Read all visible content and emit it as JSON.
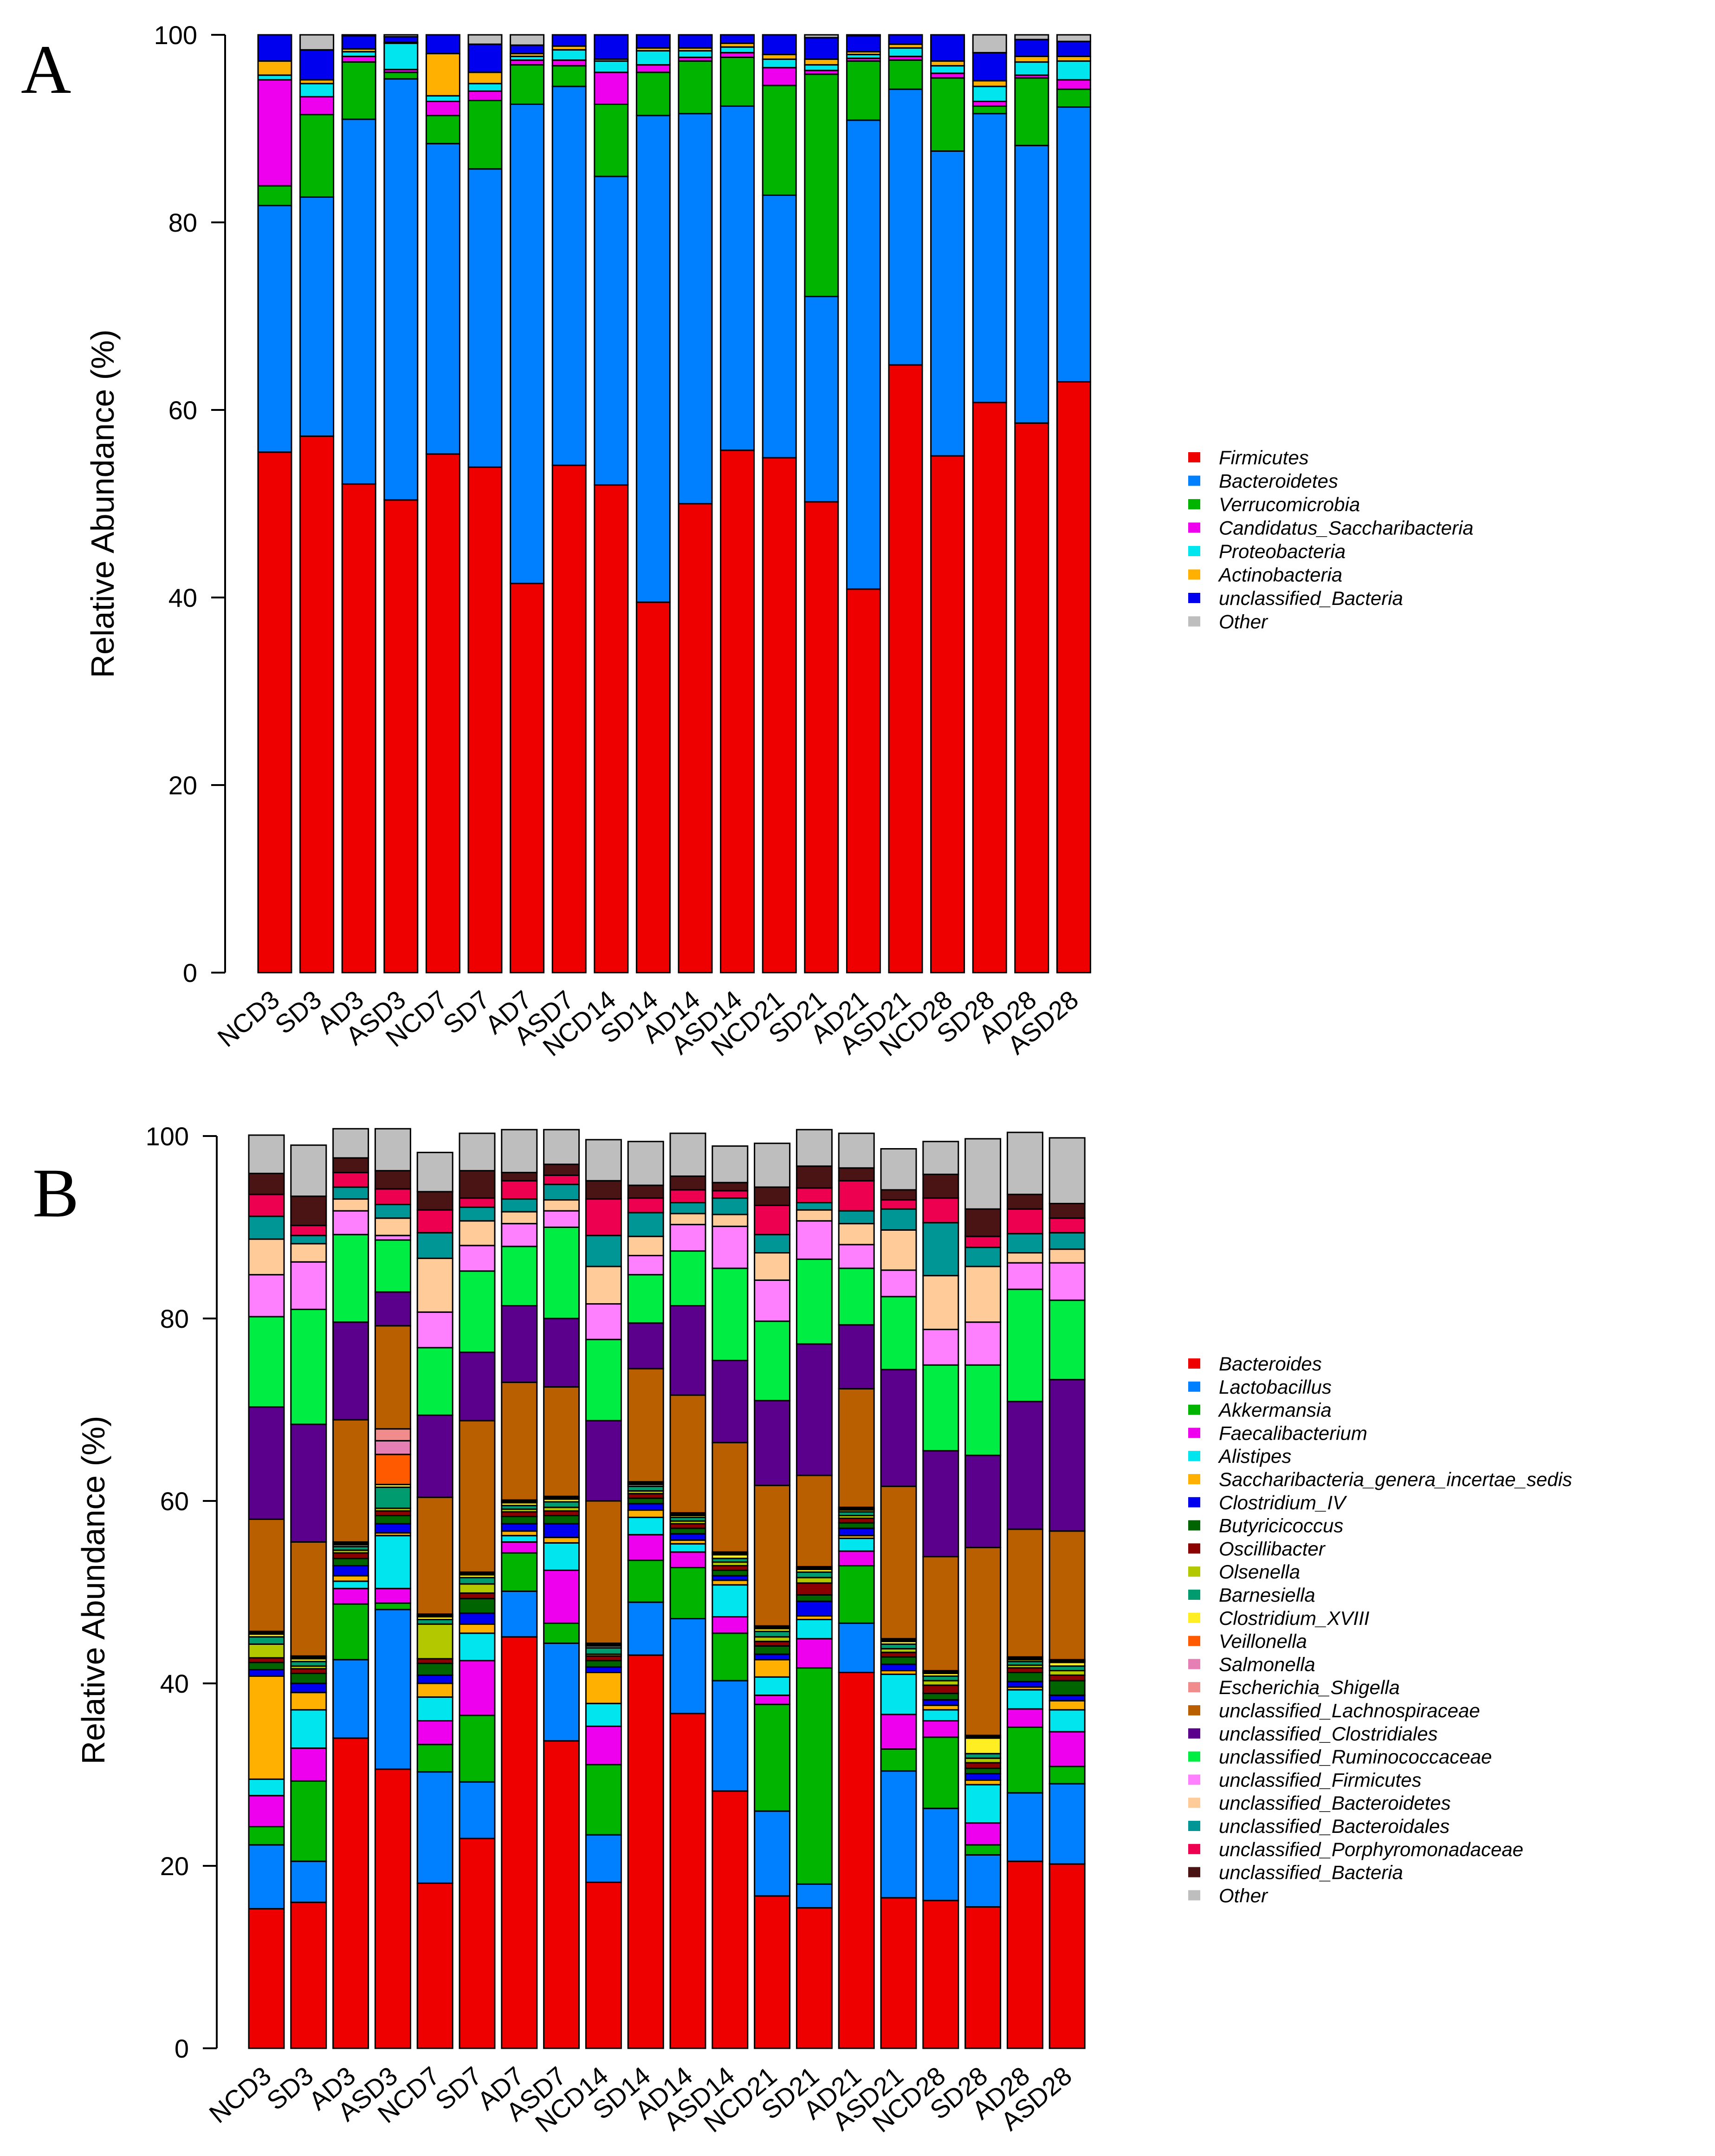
{
  "chart_data": [
    {
      "panel": "A",
      "type": "stacked_bar",
      "ylabel": "Relative Abundance (%)",
      "ylim": [
        0,
        100
      ],
      "yticks": [
        0,
        20,
        40,
        60,
        80,
        100
      ],
      "categories": [
        "NCD3",
        "SD3",
        "AD3",
        "ASD3",
        "NCD7",
        "SD7",
        "AD7",
        "ASD7",
        "NCD14",
        "SD14",
        "AD14",
        "ASD14",
        "NCD21",
        "SD21",
        "AD21",
        "ASD21",
        "NCD28",
        "SD28",
        "AD28",
        "ASD28"
      ],
      "series": [
        {
          "name": "Firmicutes",
          "color": "#ee0000",
          "values": [
            55.5,
            57.2,
            52.1,
            50.4,
            55.3,
            53.9,
            41.5,
            54.1,
            52.0,
            39.5,
            50.0,
            55.7,
            54.9,
            50.2,
            40.9,
            64.8,
            55.1,
            60.8,
            58.6,
            63.0
          ]
        },
        {
          "name": "Bacteroidetes",
          "color": "#0080ff",
          "values": [
            26.3,
            25.5,
            38.9,
            44.9,
            33.1,
            31.8,
            51.1,
            40.4,
            32.9,
            51.9,
            41.6,
            36.7,
            28.0,
            21.9,
            50.0,
            29.4,
            32.5,
            30.8,
            29.6,
            29.3
          ]
        },
        {
          "name": "Verrucomicrobia",
          "color": "#00b400",
          "values": [
            2.1,
            8.8,
            6.1,
            0.7,
            3.0,
            7.3,
            4.2,
            2.2,
            7.7,
            4.6,
            5.6,
            5.2,
            11.7,
            23.7,
            6.3,
            3.1,
            7.8,
            0.8,
            7.2,
            1.9
          ]
        },
        {
          "name": "Candidatus_Saccharibacteria",
          "color": "#ee00ee",
          "values": [
            11.3,
            1.9,
            0.6,
            0.3,
            1.5,
            1.0,
            0.5,
            0.6,
            3.4,
            0.8,
            0.4,
            0.5,
            1.9,
            0.4,
            0.3,
            0.4,
            0.5,
            0.5,
            0.3,
            1.0
          ]
        },
        {
          "name": "Proteobacteria",
          "color": "#00e5ee",
          "values": [
            0.5,
            1.4,
            0.5,
            2.8,
            0.6,
            0.8,
            0.4,
            1.1,
            1.2,
            1.5,
            0.7,
            0.6,
            0.9,
            0.6,
            0.4,
            0.9,
            0.8,
            1.6,
            1.4,
            2.0
          ]
        },
        {
          "name": "Actinobacteria",
          "color": "#ffb000",
          "values": [
            1.5,
            0.4,
            0.3,
            0.1,
            4.5,
            1.2,
            0.3,
            0.4,
            0.2,
            0.3,
            0.3,
            0.4,
            0.5,
            0.6,
            0.3,
            0.4,
            0.5,
            0.6,
            0.6,
            0.5
          ]
        },
        {
          "name": "unclassified_Bacteria",
          "color": "#0000ee",
          "values": [
            2.8,
            3.2,
            1.4,
            0.6,
            2.0,
            3.0,
            0.9,
            1.2,
            2.6,
            1.4,
            1.4,
            0.9,
            2.1,
            2.3,
            1.7,
            1.0,
            2.8,
            3.0,
            1.8,
            1.6
          ]
        },
        {
          "name": "Other",
          "color": "#bebebe",
          "values": [
            0.0,
            1.6,
            0.1,
            0.2,
            0.0,
            1.0,
            1.1,
            0.0,
            0.0,
            0.0,
            0.0,
            0.0,
            0.0,
            0.3,
            0.1,
            0.0,
            0.0,
            1.9,
            0.5,
            0.7
          ]
        }
      ]
    },
    {
      "panel": "B",
      "type": "stacked_bar",
      "ylabel": "Relative Abundance (%)",
      "ylim": [
        0,
        100
      ],
      "yticks": [
        0,
        20,
        40,
        60,
        80,
        100
      ],
      "categories": [
        "NCD3",
        "SD3",
        "AD3",
        "ASD3",
        "NCD7",
        "SD7",
        "AD7",
        "ASD7",
        "NCD14",
        "SD14",
        "AD14",
        "ASD14",
        "NCD21",
        "SD21",
        "AD21",
        "ASD21",
        "NCD28",
        "SD28",
        "AD28",
        "ASD28"
      ],
      "series": [
        {
          "name": "Bacteroides",
          "color": "#ee0000",
          "values": [
            15.3,
            16.0,
            34.0,
            30.6,
            18.1,
            23.0,
            45.1,
            33.7,
            18.2,
            43.1,
            36.7,
            28.2,
            16.7,
            15.4,
            41.2,
            16.5,
            16.2,
            15.5,
            20.5,
            20.2
          ]
        },
        {
          "name": "Lactobacillus",
          "color": "#0080ff",
          "values": [
            7.0,
            4.5,
            8.6,
            17.5,
            12.2,
            6.2,
            5.0,
            10.7,
            5.2,
            5.8,
            10.4,
            12.1,
            9.3,
            2.6,
            5.4,
            13.9,
            10.1,
            5.7,
            7.5,
            8.8
          ]
        },
        {
          "name": "Akkermansia",
          "color": "#00b400",
          "values": [
            2.0,
            8.8,
            6.1,
            0.7,
            3.0,
            7.3,
            4.2,
            2.2,
            7.7,
            4.6,
            5.6,
            5.2,
            11.7,
            23.7,
            6.3,
            2.4,
            7.8,
            1.1,
            7.2,
            1.9
          ]
        },
        {
          "name": "Faecalibacterium",
          "color": "#ee00ee",
          "values": [
            3.4,
            3.6,
            1.7,
            1.6,
            2.6,
            6.0,
            1.2,
            5.8,
            4.2,
            2.8,
            1.7,
            1.8,
            1.0,
            3.2,
            1.6,
            3.8,
            1.8,
            2.4,
            2.0,
            3.8
          ]
        },
        {
          "name": "Alistipes",
          "color": "#00e5ee",
          "values": [
            1.8,
            4.2,
            0.8,
            5.8,
            2.6,
            3.0,
            0.7,
            3.0,
            2.5,
            1.9,
            0.9,
            3.5,
            2.0,
            2.1,
            1.4,
            4.4,
            1.2,
            4.2,
            2.1,
            2.4
          ]
        },
        {
          "name": "Saccharibacteria_genera_incertae_sedis",
          "color": "#ffb000",
          "values": [
            11.3,
            1.9,
            0.6,
            0.3,
            1.5,
            1.0,
            0.5,
            0.6,
            3.4,
            0.8,
            0.4,
            0.5,
            1.9,
            0.4,
            0.3,
            0.4,
            0.5,
            0.5,
            0.3,
            1.0
          ]
        },
        {
          "name": "Clostridium_IV",
          "color": "#0000ee",
          "values": [
            0.7,
            1.0,
            1.1,
            1.0,
            0.9,
            1.2,
            0.8,
            1.5,
            0.6,
            0.7,
            0.7,
            0.5,
            0.6,
            1.6,
            0.8,
            0.7,
            0.6,
            0.7,
            0.6,
            0.6
          ]
        },
        {
          "name": "Butyricicoccus",
          "color": "#006400",
          "values": [
            0.8,
            1.1,
            0.8,
            0.9,
            1.3,
            1.6,
            0.8,
            0.9,
            0.7,
            0.6,
            0.6,
            0.6,
            0.9,
            0.7,
            0.6,
            0.8,
            0.7,
            0.6,
            1.0,
            1.6
          ]
        },
        {
          "name": "Oscillibacter",
          "color": "#8b0000",
          "values": [
            0.5,
            0.5,
            0.6,
            0.5,
            0.5,
            0.6,
            0.5,
            0.5,
            0.5,
            0.5,
            0.5,
            0.5,
            0.5,
            1.3,
            0.5,
            0.5,
            0.9,
            0.6,
            0.5,
            0.6
          ]
        },
        {
          "name": "Olsenella",
          "color": "#b4c800",
          "values": [
            1.5,
            0.3,
            0.3,
            0.3,
            3.8,
            1.0,
            0.3,
            0.4,
            0.2,
            0.3,
            0.3,
            0.4,
            0.5,
            0.6,
            0.3,
            0.4,
            0.5,
            0.5,
            0.3,
            0.5
          ]
        },
        {
          "name": "Barnesiella",
          "color": "#009b6e",
          "values": [
            0.8,
            0.5,
            0.4,
            2.3,
            0.5,
            0.7,
            0.4,
            0.6,
            0.7,
            0.5,
            0.4,
            0.4,
            0.6,
            0.6,
            0.4,
            0.5,
            0.5,
            0.5,
            0.4,
            0.5
          ]
        },
        {
          "name": "Clostridium_XVIII",
          "color": "#ffee22",
          "values": [
            0.3,
            0.3,
            0.2,
            0.3,
            0.3,
            0.3,
            0.3,
            0.3,
            0.2,
            0.2,
            0.2,
            0.4,
            0.3,
            0.3,
            0.2,
            0.3,
            0.3,
            1.7,
            0.2,
            0.4
          ]
        },
        {
          "name": "Veillonella",
          "color": "#ff5a00",
          "values": [
            0.1,
            0.1,
            0.1,
            3.3,
            0.1,
            0.1,
            0.1,
            0.1,
            0.1,
            0.1,
            0.1,
            0.1,
            0.1,
            0.1,
            0.1,
            0.1,
            0.1,
            0.1,
            0.1,
            0.1
          ]
        },
        {
          "name": "Salmonella",
          "color": "#e680b4",
          "values": [
            0.1,
            0.1,
            0.1,
            1.5,
            0.1,
            0.1,
            0.1,
            0.1,
            0.1,
            0.1,
            0.1,
            0.1,
            0.1,
            0.1,
            0.1,
            0.1,
            0.1,
            0.1,
            0.1,
            0.1
          ]
        },
        {
          "name": "Escherichia_Shigella",
          "color": "#f08c8c",
          "values": [
            0.1,
            0.1,
            0.1,
            1.3,
            0.1,
            0.1,
            0.1,
            0.1,
            0.1,
            0.1,
            0.1,
            0.1,
            0.1,
            0.1,
            0.1,
            0.1,
            0.1,
            0.1,
            0.1,
            0.1
          ]
        },
        {
          "name": "unclassified_Lachnospiraceae",
          "color": "#b95f00",
          "values": [
            12.3,
            12.5,
            13.4,
            11.3,
            12.8,
            16.6,
            12.9,
            12.0,
            15.6,
            12.4,
            12.9,
            12.0,
            15.4,
            10.0,
            13.0,
            16.7,
            12.5,
            20.6,
            14.0,
            14.1
          ]
        },
        {
          "name": "unclassified_Clostridiales",
          "color": "#5a008c",
          "values": [
            12.3,
            12.9,
            10.7,
            3.7,
            9.0,
            7.5,
            8.4,
            7.5,
            8.8,
            5.0,
            9.8,
            9.0,
            9.3,
            14.4,
            7.0,
            12.8,
            11.6,
            10.1,
            14.0,
            16.6
          ]
        },
        {
          "name": "unclassified_Ruminococcaceae",
          "color": "#00ee44",
          "values": [
            9.9,
            12.6,
            9.6,
            5.7,
            7.4,
            8.9,
            6.5,
            10.0,
            8.9,
            5.3,
            6.0,
            10.1,
            8.7,
            9.3,
            6.2,
            8.0,
            9.4,
            9.9,
            12.3,
            8.7
          ]
        },
        {
          "name": "unclassified_Firmicutes",
          "color": "#ff80ff",
          "values": [
            4.6,
            5.2,
            2.6,
            0.5,
            3.9,
            2.8,
            2.5,
            1.8,
            3.9,
            2.1,
            2.9,
            4.6,
            4.5,
            4.2,
            2.6,
            2.9,
            3.9,
            4.7,
            2.9,
            4.1
          ]
        },
        {
          "name": "unclassified_Bacteroidetes",
          "color": "#ffcc99",
          "values": [
            3.9,
            2.0,
            1.3,
            1.9,
            5.9,
            2.7,
            1.3,
            1.2,
            4.1,
            2.1,
            1.2,
            1.3,
            3.0,
            1.2,
            2.3,
            4.4,
            5.9,
            6.1,
            1.1,
            1.5
          ]
        },
        {
          "name": "unclassified_Bacteroidales",
          "color": "#009696",
          "values": [
            2.5,
            0.9,
            1.3,
            1.5,
            2.8,
            1.5,
            1.4,
            1.7,
            3.4,
            2.6,
            1.2,
            1.8,
            2.0,
            0.8,
            1.4,
            2.3,
            5.8,
            2.1,
            2.1,
            1.8
          ]
        },
        {
          "name": "unclassified_Porphyromonadaceae",
          "color": "#ee0050",
          "values": [
            2.4,
            1.1,
            1.6,
            1.7,
            2.5,
            1.0,
            2.0,
            1.0,
            4.0,
            1.6,
            1.4,
            0.8,
            3.2,
            1.6,
            3.3,
            1.0,
            2.7,
            1.2,
            2.7,
            1.6
          ]
        },
        {
          "name": "unclassified_Bacteria",
          "color": "#4b1414",
          "values": [
            2.3,
            3.2,
            1.6,
            2.0,
            2.0,
            3.0,
            0.9,
            1.2,
            2.0,
            1.4,
            1.5,
            0.9,
            2.0,
            2.4,
            1.4,
            1.1,
            2.6,
            3.0,
            1.6,
            1.6
          ]
        },
        {
          "name": "Other",
          "color": "#bebebe",
          "values": [
            4.2,
            5.6,
            3.2,
            4.6,
            4.3,
            4.1,
            4.7,
            3.8,
            4.5,
            4.8,
            4.7,
            4.0,
            4.8,
            4.0,
            3.8,
            4.5,
            3.6,
            7.7,
            6.8,
            7.2
          ]
        }
      ]
    }
  ],
  "panels": [
    {
      "letter": "A"
    },
    {
      "letter": "B"
    }
  ]
}
